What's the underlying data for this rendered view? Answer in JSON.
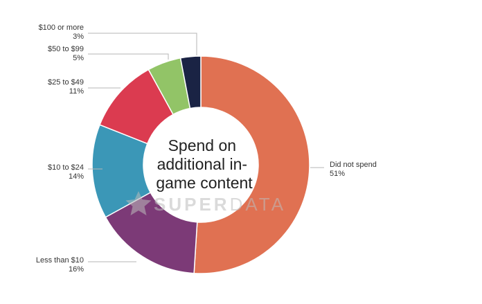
{
  "chart_data": {
    "type": "pie",
    "title": "Spend on additional in-game content",
    "title_lines": [
      "Spend on",
      "additional in-",
      "game content"
    ],
    "slices": [
      {
        "name": "Did not spend",
        "value": 51,
        "label": "51%",
        "color": "#E07152"
      },
      {
        "name": "Less than $10",
        "value": 16,
        "label": "16%",
        "color": "#7C3A77"
      },
      {
        "name": "$10 to $24",
        "value": 14,
        "label": "14%",
        "color": "#3B97B7"
      },
      {
        "name": "$25 to $49",
        "value": 11,
        "label": "11%",
        "color": "#DB3B50"
      },
      {
        "name": "$50 to $99",
        "value": 5,
        "label": "5%",
        "color": "#92C467"
      },
      {
        "name": "$100 or more",
        "value": 3,
        "label": "3%",
        "color": "#1A2344"
      }
    ],
    "donut": true
  },
  "watermark": {
    "text_bold": "SUPER",
    "text_light": "DATA",
    "icon": "star-icon",
    "color": "#bcbcbc"
  }
}
